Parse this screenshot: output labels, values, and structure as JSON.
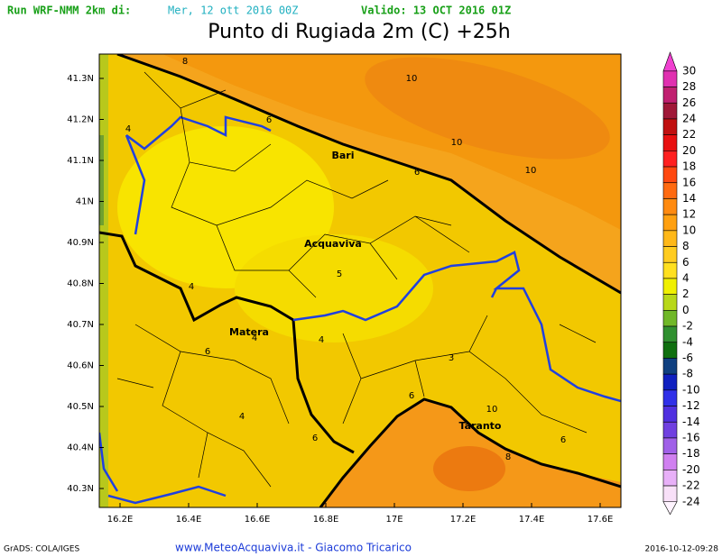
{
  "header": {
    "run": "Run WRF-NMM 2km di:",
    "run_date": "Mer, 12 ott 2016 00Z",
    "valid": "Valido: 13 OCT 2016 01Z",
    "title": "Punto di Rugiada 2m (C) +25h"
  },
  "lat_labels": [
    "41.3N",
    "41.2N",
    "41.1N",
    "41N",
    "40.9N",
    "40.8N",
    "40.7N",
    "40.6N",
    "40.5N",
    "40.4N",
    "40.3N"
  ],
  "lon_labels": [
    "16.2E",
    "16.4E",
    "16.6E",
    "16.8E",
    "17E",
    "17.2E",
    "17.4E",
    "17.6E"
  ],
  "colorbar_labels": [
    "30",
    "28",
    "26",
    "24",
    "22",
    "20",
    "18",
    "16",
    "14",
    "12",
    "10",
    "8",
    "6",
    "4",
    "2",
    "0",
    "-2",
    "-4",
    "-6",
    "-8",
    "-10",
    "-12",
    "-14",
    "-16",
    "-18",
    "-20",
    "-22",
    "-24"
  ],
  "contour_labels": [
    "8",
    "10",
    "6",
    "4",
    "10",
    "10",
    "6",
    "4",
    "5",
    "4",
    "6",
    "4",
    "3",
    "6",
    "10",
    "4",
    "6",
    "6",
    "8"
  ],
  "places": [
    "Bari",
    "Acquaviva",
    "Matera",
    "Taranto"
  ],
  "footer": {
    "software": "GrADS: COLA/IGES",
    "site": "www.MeteoAcquaviva.it  -  Giacomo Tricarico",
    "timestamp": "2016-10-12-09:28"
  }
}
